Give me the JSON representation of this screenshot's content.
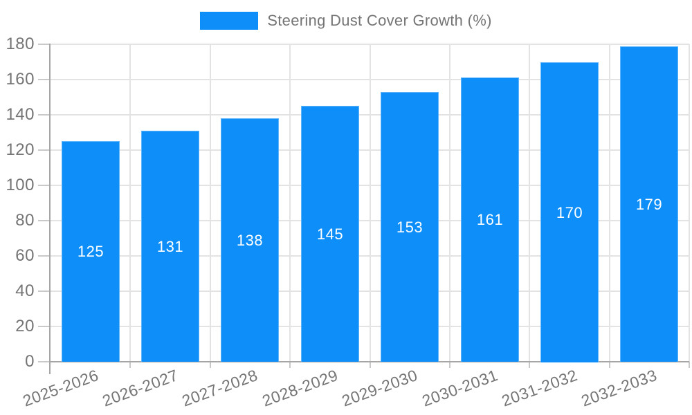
{
  "chart": {
    "colors": {
      "bar": "#0d8ef9",
      "bar_label": "#ffffff",
      "axis_text": "#757575",
      "grid": "#e3e3e3",
      "axis_line": "#a6a6a6",
      "tick": "#c9c9c9",
      "background": "#ffffff"
    }
  },
  "chart_data": {
    "type": "bar",
    "title": "Steering Dust Cover Growth (%)",
    "legend_entries": [
      "Steering Dust Cover Growth (%)"
    ],
    "legend_position": "top-center",
    "categories": [
      "2025-2026",
      "2026-2027",
      "2027-2028",
      "2028-2029",
      "2029-2030",
      "2030-2031",
      "2031-2032",
      "2032-2033"
    ],
    "values": [
      125,
      131,
      138,
      145,
      153,
      161,
      170,
      179
    ],
    "xlabel": "",
    "ylabel": "",
    "ylim": [
      0,
      180
    ],
    "yticks": [
      0,
      20,
      40,
      60,
      80,
      100,
      120,
      140,
      160,
      180
    ],
    "grid": true,
    "value_labels": "white, centered vertically inside bars",
    "x_label_rotation_deg": -20
  }
}
